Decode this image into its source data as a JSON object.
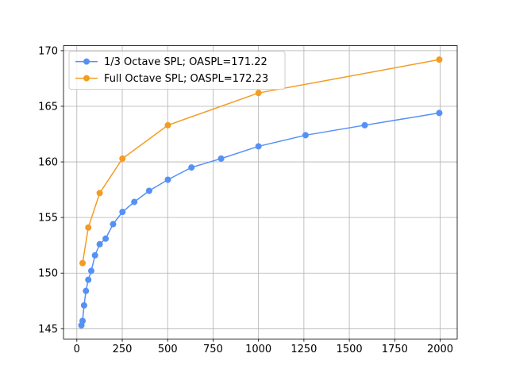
{
  "chart_data": {
    "type": "line",
    "x_note_free": null,
    "series": [
      {
        "name": "1/3 Octave SPL; OASPL=171.22",
        "color": "#5591f5",
        "x": [
          25.1,
          31.6,
          39.8,
          50.1,
          63.1,
          79.4,
          100,
          125.9,
          158.5,
          199.5,
          251.2,
          316.2,
          398.1,
          501.2,
          631,
          794.3,
          1000,
          1258.9,
          1584.9,
          1995.3
        ],
        "values": [
          145.3,
          145.7,
          147.1,
          148.4,
          149.4,
          150.2,
          151.6,
          152.6,
          153.1,
          154.4,
          155.5,
          156.4,
          157.4,
          158.4,
          159.5,
          160.3,
          161.4,
          162.4,
          163.3,
          164.4
        ]
      },
      {
        "name": "Full Octave SPL; OASPL=172.23",
        "color": "#f39c22",
        "x": [
          31.6,
          63.1,
          125.9,
          251.2,
          501.2,
          1000,
          1995.3
        ],
        "values": [
          150.9,
          154.1,
          157.2,
          160.3,
          163.3,
          166.2,
          169.2
        ]
      }
    ],
    "xlim": [
      -73.4,
      2093.8
    ],
    "ylim": [
      144.08,
      170.45
    ],
    "xticks": [
      0,
      250,
      500,
      750,
      1000,
      1250,
      1500,
      1750,
      2000
    ],
    "yticks": [
      145,
      150,
      155,
      160,
      165,
      170
    ],
    "grid": true,
    "legend": "upper-left"
  }
}
